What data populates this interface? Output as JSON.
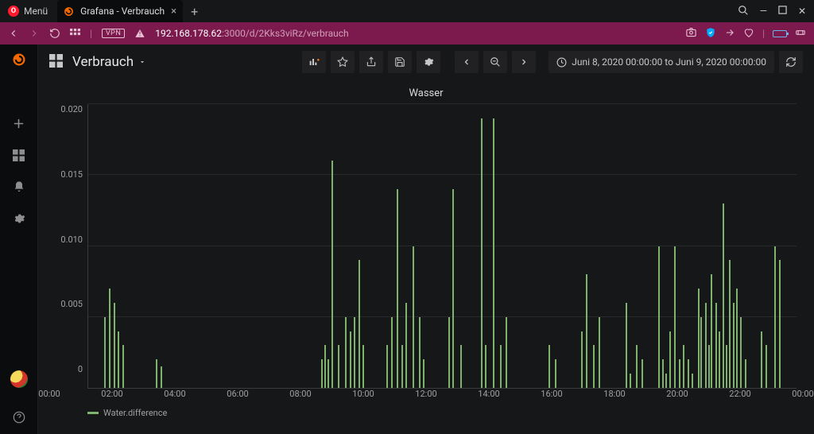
{
  "window": {
    "menu_label": "Menü",
    "tab_title": "Grafana - Verbrauch",
    "url_host": "192.168.178.62",
    "url_path": ":3000/d/2Kks3viRz/verbrauch",
    "vpn_label": "VPN"
  },
  "dashboard": {
    "title": "Verbrauch",
    "time_range": "Juni 8, 2020 00:00:00 to Juni 9, 2020 00:00:00"
  },
  "panel": {
    "title": "Wasser",
    "legend": "Water.difference",
    "series_color": "#7eb26d",
    "grid_color": "#2a2a2e",
    "axis_color": "#3a3a3f",
    "background": "#161719",
    "y": {
      "min": 0,
      "max": 0.02,
      "ticks": [
        "0.020",
        "0.015",
        "0.010",
        "0.005",
        "0"
      ]
    },
    "x": {
      "min": 0,
      "max": 24,
      "ticks": [
        {
          "h": 0,
          "l": "00:00"
        },
        {
          "h": 2,
          "l": "02:00"
        },
        {
          "h": 4,
          "l": "04:00"
        },
        {
          "h": 6,
          "l": "06:00"
        },
        {
          "h": 8,
          "l": "08:00"
        },
        {
          "h": 10,
          "l": "10:00"
        },
        {
          "h": 12,
          "l": "12:00"
        },
        {
          "h": 14,
          "l": "14:00"
        },
        {
          "h": 16,
          "l": "16:00"
        },
        {
          "h": 18,
          "l": "18:00"
        },
        {
          "h": 20,
          "l": "20:00"
        },
        {
          "h": 22,
          "l": "22:00"
        },
        {
          "h": 24,
          "l": "00:00"
        }
      ]
    },
    "bars": [
      {
        "t": 0.55,
        "v": 0.005
      },
      {
        "t": 0.7,
        "v": 0.007
      },
      {
        "t": 0.85,
        "v": 0.006
      },
      {
        "t": 1.0,
        "v": 0.004
      },
      {
        "t": 1.15,
        "v": 0.003
      },
      {
        "t": 2.3,
        "v": 0.002
      },
      {
        "t": 2.45,
        "v": 0.0015
      },
      {
        "t": 7.9,
        "v": 0.002
      },
      {
        "t": 8.0,
        "v": 0.003
      },
      {
        "t": 8.1,
        "v": 0.002
      },
      {
        "t": 8.25,
        "v": 0.016
      },
      {
        "t": 8.45,
        "v": 0.003
      },
      {
        "t": 8.7,
        "v": 0.005
      },
      {
        "t": 8.85,
        "v": 0.004
      },
      {
        "t": 9.0,
        "v": 0.005
      },
      {
        "t": 9.15,
        "v": 0.009
      },
      {
        "t": 9.3,
        "v": 0.003
      },
      {
        "t": 10.1,
        "v": 0.003
      },
      {
        "t": 10.25,
        "v": 0.005
      },
      {
        "t": 10.45,
        "v": 0.014
      },
      {
        "t": 10.6,
        "v": 0.003
      },
      {
        "t": 10.75,
        "v": 0.006
      },
      {
        "t": 11.0,
        "v": 0.01
      },
      {
        "t": 11.2,
        "v": 0.005
      },
      {
        "t": 11.35,
        "v": 0.002
      },
      {
        "t": 12.2,
        "v": 0.005
      },
      {
        "t": 12.35,
        "v": 0.014
      },
      {
        "t": 12.6,
        "v": 0.003
      },
      {
        "t": 13.3,
        "v": 0.019
      },
      {
        "t": 13.45,
        "v": 0.003
      },
      {
        "t": 13.7,
        "v": 0.019
      },
      {
        "t": 13.95,
        "v": 0.003
      },
      {
        "t": 14.15,
        "v": 0.005
      },
      {
        "t": 15.6,
        "v": 0.003
      },
      {
        "t": 15.8,
        "v": 0.002
      },
      {
        "t": 16.7,
        "v": 0.004
      },
      {
        "t": 16.85,
        "v": 0.008
      },
      {
        "t": 17.1,
        "v": 0.003
      },
      {
        "t": 17.3,
        "v": 0.005
      },
      {
        "t": 18.2,
        "v": 0.006
      },
      {
        "t": 18.35,
        "v": 0.001
      },
      {
        "t": 18.55,
        "v": 0.003
      },
      {
        "t": 18.75,
        "v": 0.002
      },
      {
        "t": 19.3,
        "v": 0.01
      },
      {
        "t": 19.45,
        "v": 0.002
      },
      {
        "t": 19.55,
        "v": 0.001
      },
      {
        "t": 19.7,
        "v": 0.004
      },
      {
        "t": 19.85,
        "v": 0.01
      },
      {
        "t": 20.0,
        "v": 0.002
      },
      {
        "t": 20.15,
        "v": 0.003
      },
      {
        "t": 20.3,
        "v": 0.002
      },
      {
        "t": 20.45,
        "v": 0.001
      },
      {
        "t": 20.65,
        "v": 0.007
      },
      {
        "t": 20.75,
        "v": 0.005
      },
      {
        "t": 20.9,
        "v": 0.006
      },
      {
        "t": 21.0,
        "v": 0.003
      },
      {
        "t": 21.1,
        "v": 0.008
      },
      {
        "t": 21.25,
        "v": 0.006
      },
      {
        "t": 21.35,
        "v": 0.004
      },
      {
        "t": 21.5,
        "v": 0.013
      },
      {
        "t": 21.6,
        "v": 0.003
      },
      {
        "t": 21.7,
        "v": 0.009
      },
      {
        "t": 21.85,
        "v": 0.006
      },
      {
        "t": 21.95,
        "v": 0.007
      },
      {
        "t": 22.1,
        "v": 0.005
      },
      {
        "t": 22.25,
        "v": 0.002
      },
      {
        "t": 22.8,
        "v": 0.004
      },
      {
        "t": 22.95,
        "v": 0.003
      },
      {
        "t": 23.25,
        "v": 0.01
      },
      {
        "t": 23.4,
        "v": 0.009
      }
    ]
  }
}
